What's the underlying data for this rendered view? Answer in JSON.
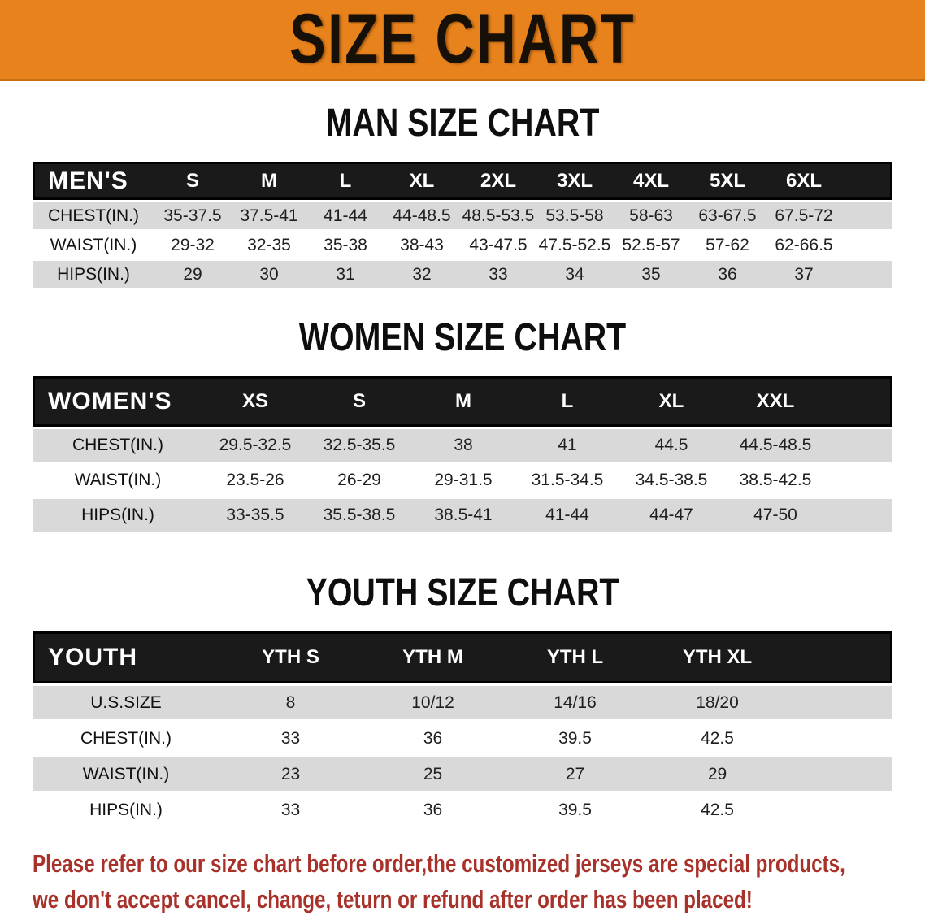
{
  "banner": {
    "title": "SIZE CHART"
  },
  "colors": {
    "banner_bg": "#e8821c",
    "table_header_bg": "#1a1a1a",
    "row_gray": "#d9d9d9",
    "row_white": "#ffffff",
    "disclaimer_red": "#a8312a"
  },
  "sections": [
    {
      "heading": "MAN SIZE CHART",
      "group_label": "MEN'S",
      "columns": [
        "S",
        "M",
        "L",
        "XL",
        "2XL",
        "3XL",
        "4XL",
        "5XL",
        "6XL"
      ],
      "rows": [
        {
          "label": "CHEST(IN.)",
          "values": [
            "35-37.5",
            "37.5-41",
            "41-44",
            "44-48.5",
            "48.5-53.5",
            "53.5-58",
            "58-63",
            "63-67.5",
            "67.5-72"
          ]
        },
        {
          "label": "WAIST(IN.)",
          "values": [
            "29-32",
            "32-35",
            "35-38",
            "38-43",
            "43-47.5",
            "47.5-52.5",
            "52.5-57",
            "57-62",
            "62-66.5"
          ]
        },
        {
          "label": "HIPS(IN.)",
          "values": [
            "29",
            "30",
            "31",
            "32",
            "33",
            "34",
            "35",
            "36",
            "37"
          ]
        }
      ]
    },
    {
      "heading": "WOMEN SIZE CHART",
      "group_label": "WOMEN'S",
      "columns": [
        "XS",
        "S",
        "M",
        "L",
        "XL",
        "XXL"
      ],
      "rows": [
        {
          "label": "CHEST(IN.)",
          "values": [
            "29.5-32.5",
            "32.5-35.5",
            "38",
            "41",
            "44.5",
            "44.5-48.5"
          ]
        },
        {
          "label": "WAIST(IN.)",
          "values": [
            "23.5-26",
            "26-29",
            "29-31.5",
            "31.5-34.5",
            "34.5-38.5",
            "38.5-42.5"
          ]
        },
        {
          "label": "HIPS(IN.)",
          "values": [
            "33-35.5",
            "35.5-38.5",
            "38.5-41",
            "41-44",
            "44-47",
            "47-50"
          ]
        }
      ]
    },
    {
      "heading": "YOUTH SIZE CHART",
      "group_label": "YOUTH",
      "columns": [
        "YTH S",
        "YTH M",
        "YTH L",
        "YTH XL"
      ],
      "rows": [
        {
          "label": "U.S.SIZE",
          "values": [
            "8",
            "10/12",
            "14/16",
            "18/20"
          ]
        },
        {
          "label": "CHEST(IN.)",
          "values": [
            "33",
            "36",
            "39.5",
            "42.5"
          ]
        },
        {
          "label": "WAIST(IN.)",
          "values": [
            "23",
            "25",
            "27",
            "29"
          ]
        },
        {
          "label": "HIPS(IN.)",
          "values": [
            "33",
            "36",
            "39.5",
            "42.5"
          ]
        }
      ]
    }
  ],
  "disclaimer": {
    "line1": "Please refer to our size chart before order,the customized jerseys are special products,",
    "line2": "we don't accept cancel, change, teturn or refund after order has been placed!"
  }
}
